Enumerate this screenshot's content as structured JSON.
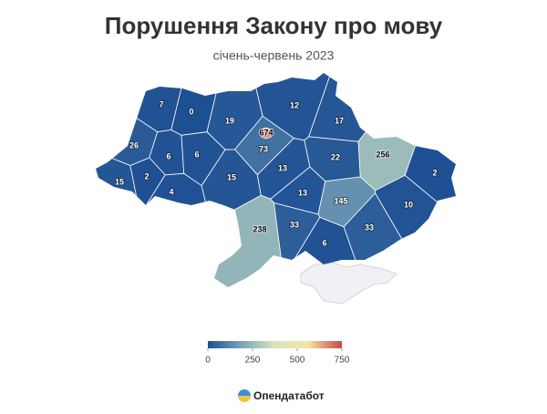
{
  "chart_data": {
    "type": "choropleth",
    "title": "Порушення Закону про мову",
    "subtitle": "січень-червень 2023",
    "values": [
      7,
      0,
      19,
      12,
      17,
      26,
      6,
      6,
      674,
      73,
      22,
      256,
      2,
      15,
      2,
      4,
      15,
      13,
      13,
      145,
      10,
      238,
      33,
      33,
      6
    ],
    "colorbar": {
      "lim": [
        0,
        750
      ],
      "ticks": [
        0,
        250,
        500,
        750
      ],
      "colors": [
        "#1d4f93",
        "#7aa3b8",
        "#d6e7bd",
        "#f3e3a2",
        "#c8474b"
      ]
    },
    "source": "Опендатабот"
  }
}
